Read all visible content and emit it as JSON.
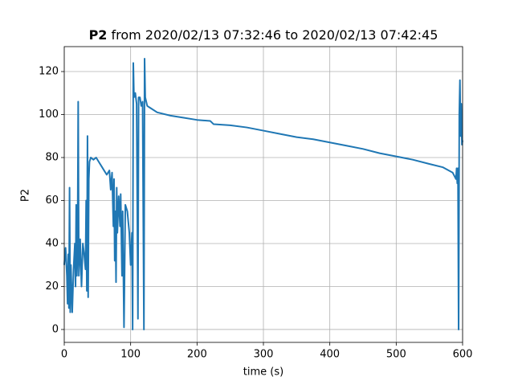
{
  "chart_data": {
    "type": "line",
    "title_bold": "P2",
    "title": "from 2020/02/13 07:32:46 to 2020/02/13 07:42:45",
    "xlabel": "time (s)",
    "ylabel": "P2",
    "x": [
      0,
      2,
      4,
      5,
      6,
      7,
      8,
      9,
      10,
      12,
      14,
      16,
      17,
      18,
      19,
      20,
      21,
      22,
      24,
      25,
      26,
      28,
      30,
      32,
      33,
      34,
      35,
      36,
      37,
      38,
      40,
      44,
      48,
      52,
      56,
      60,
      64,
      68,
      70,
      72,
      74,
      75,
      76,
      77,
      78,
      79,
      80,
      82,
      84,
      85,
      87,
      88,
      90,
      92,
      95,
      98,
      100,
      102,
      103,
      104,
      105,
      107,
      109,
      111,
      112,
      114,
      116,
      118,
      120,
      121,
      122,
      125,
      130,
      140,
      160,
      180,
      200,
      220,
      225,
      250,
      275,
      300,
      325,
      350,
      375,
      400,
      425,
      450,
      475,
      500,
      525,
      550,
      570,
      585,
      590,
      591,
      592,
      593,
      594,
      595,
      596,
      597,
      598,
      599,
      600
    ],
    "series": [
      {
        "name": "P2",
        "color": "#1f77b4",
        "values": [
          30,
          38,
          25,
          12,
          35,
          10,
          66,
          8,
          30,
          8,
          28,
          40,
          20,
          58,
          25,
          35,
          106,
          25,
          42,
          30,
          20,
          40,
          35,
          28,
          60,
          18,
          90,
          15,
          70,
          78,
          80,
          79,
          80,
          78,
          76,
          74,
          72,
          74,
          65,
          73,
          48,
          70,
          32,
          55,
          22,
          66,
          45,
          62,
          48,
          63,
          25,
          55,
          1,
          58,
          55,
          45,
          30,
          45,
          0,
          124,
          108,
          110,
          105,
          5,
          108,
          108,
          104,
          106,
          0,
          126,
          108,
          104,
          103,
          101,
          99.5,
          98.5,
          97.5,
          97,
          95.5,
          95,
          94,
          92.5,
          91,
          89.5,
          88.5,
          87,
          85.5,
          84,
          82,
          80.5,
          79,
          77,
          75.5,
          73,
          70,
          75,
          68,
          75,
          0,
          100,
          116,
          90,
          105,
          86,
          88
        ]
      }
    ],
    "xlim": [
      0,
      600
    ],
    "xticks": [
      0,
      100,
      200,
      300,
      400,
      500,
      600
    ],
    "ylim": [
      -6,
      131.6
    ],
    "yticks": [
      0,
      20,
      40,
      60,
      80,
      100,
      120
    ],
    "grid": true
  }
}
